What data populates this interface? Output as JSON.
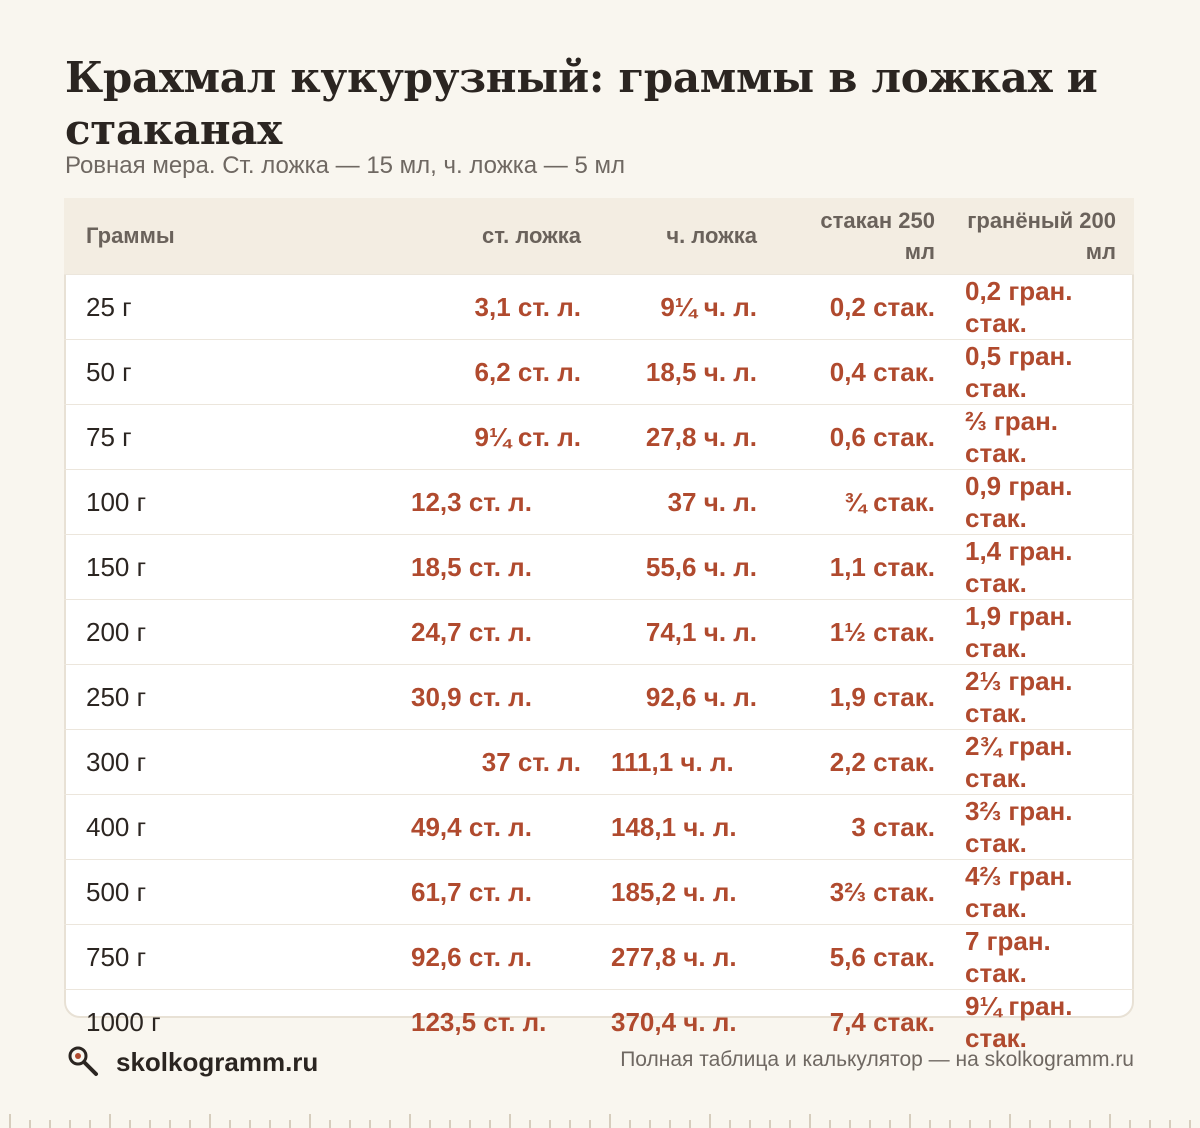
{
  "title": "Крахмал кукурузный: граммы в ложках и стаканах",
  "subtitle": "Ровная мера. Ст. ложка — 15 мл, ч. ложка — 5 мл",
  "table": {
    "headers": [
      "Граммы",
      "ст. ложка",
      "ч. ложка",
      "стакан 250 мл",
      "гранёный 200 мл"
    ],
    "rows": [
      [
        "25 г",
        "3,1 ст. л.",
        "9¼ ч. л.",
        "0,2 стак.",
        "0,2 гран. стак."
      ],
      [
        "50 г",
        "6,2 ст. л.",
        "18,5 ч. л.",
        "0,4 стак.",
        "0,5 гран. стак."
      ],
      [
        "75 г",
        "9¼ ст. л.",
        "27,8 ч. л.",
        "0,6 стак.",
        "⅔ гран. стак."
      ],
      [
        "100 г",
        "12,3 ст. л.",
        "37 ч. л.",
        "¾ стак.",
        "0,9 гран. стак."
      ],
      [
        "150 г",
        "18,5 ст. л.",
        "55,6 ч. л.",
        "1,1 стак.",
        "1,4 гран. стак."
      ],
      [
        "200 г",
        "24,7 ст. л.",
        "74,1 ч. л.",
        "1½ стак.",
        "1,9 гран. стак."
      ],
      [
        "250 г",
        "30,9 ст. л.",
        "92,6 ч. л.",
        "1,9 стак.",
        "2⅓ гран. стак."
      ],
      [
        "300 г",
        "37 ст. л.",
        "111,1 ч. л.",
        "2,2 стак.",
        "2¾ гран. стак."
      ],
      [
        "400 г",
        "49,4 ст. л.",
        "148,1 ч. л.",
        "3 стак.",
        "3⅔ гран. стак."
      ],
      [
        "500 г",
        "61,7 ст. л.",
        "185,2 ч. л.",
        "3⅔ стак.",
        "4⅔ гран. стак."
      ],
      [
        "750 г",
        "92,6 ст. л.",
        "277,8 ч. л.",
        "5,6 стак.",
        "7 гран. стак."
      ],
      [
        "1000 г",
        "123,5 ст. л.",
        "370,4 ч. л.",
        "7,4 стак.",
        "9¼ гран. стак."
      ]
    ]
  },
  "footer": {
    "logo_icon": "magnifier-icon",
    "logo_text": "skolkogramm.ru",
    "note": "Полная таблица и калькулятор — на skolkogramm.ru"
  },
  "colors": {
    "background": "#f9f6ef",
    "accent": "#b04a2e",
    "header_bg": "#f3ede2",
    "text": "#2b2521",
    "muted": "#6f6862"
  }
}
